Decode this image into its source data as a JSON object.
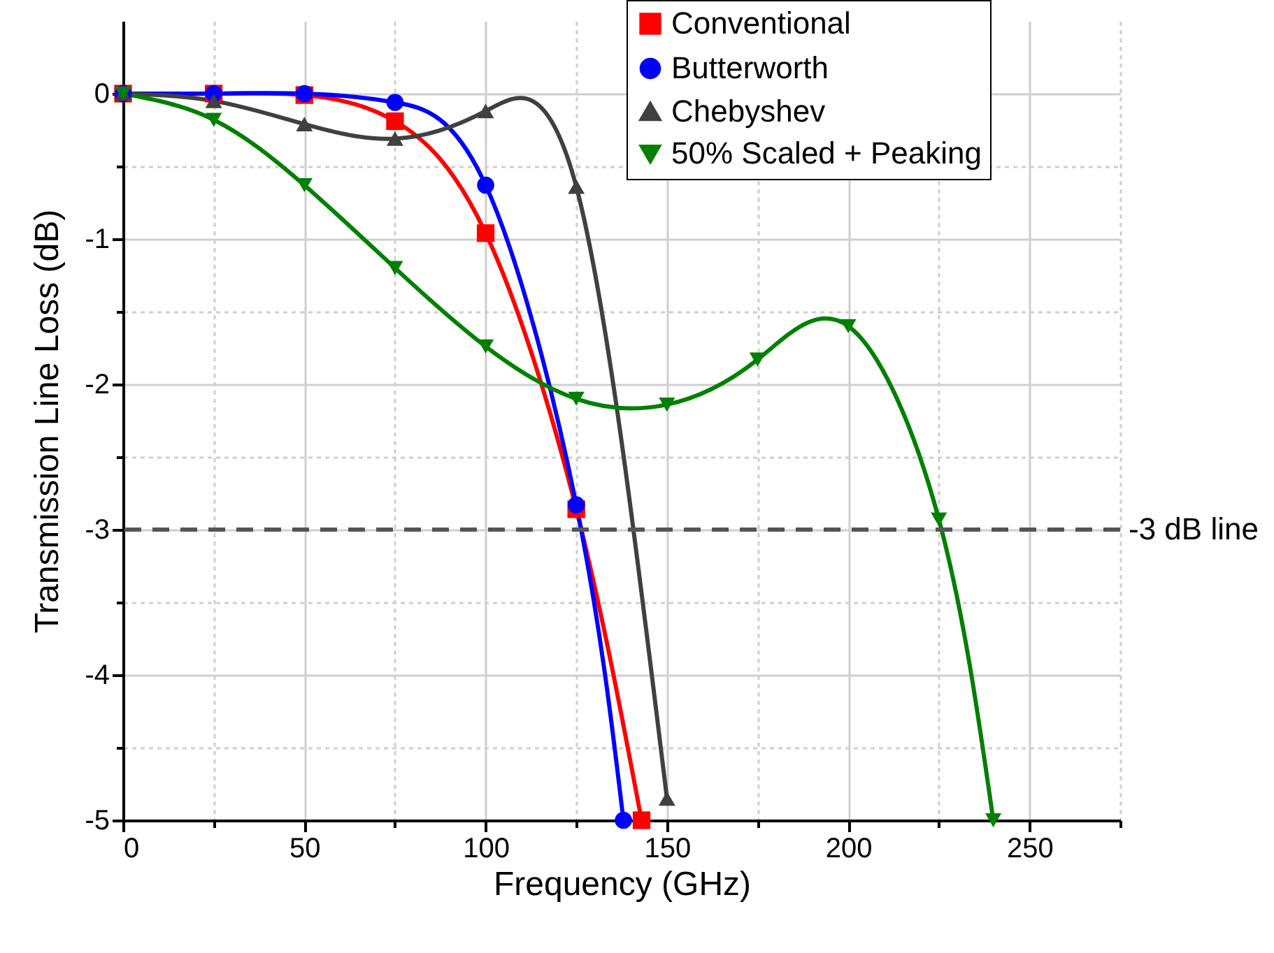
{
  "chart_data": {
    "type": "line",
    "xlabel": "Frequency (GHz)",
    "ylabel": "Transmission Line Loss (dB)",
    "xlim": [
      0,
      275
    ],
    "ylim": [
      -5,
      0.5
    ],
    "xticks": [
      0,
      {
        "value": 25,
        "label": null
      },
      50,
      {
        "value": 75,
        "label": null
      },
      100,
      {
        "value": 125,
        "label": null
      },
      150,
      {
        "value": 175,
        "label": null
      },
      200,
      {
        "value": 225,
        "label": null
      },
      250,
      {
        "value": 275,
        "label": null
      }
    ],
    "yticks": [
      -5,
      {
        "value": -4.5,
        "label": null
      },
      -4,
      {
        "value": -3.5,
        "label": null
      },
      -3,
      {
        "value": -2.5,
        "label": null
      },
      -2,
      {
        "value": -1.5,
        "label": null
      },
      -1,
      {
        "value": -0.5,
        "label": null
      },
      0
    ],
    "grid": true,
    "legend": "top right",
    "line_style": "solid",
    "series": [
      {
        "name": "Conventional",
        "color": "#ff0000",
        "marker": "square",
        "x": [
          0,
          25,
          50,
          75,
          100,
          125,
          143
        ],
        "values": [
          0,
          0,
          -0.01,
          -0.19,
          -0.96,
          -2.86,
          -5
        ]
      },
      {
        "name": "Butterworth",
        "color": "#0000ff",
        "marker": "circle",
        "x": [
          0,
          25,
          50,
          75,
          100,
          125,
          138
        ],
        "values": [
          0,
          0,
          0,
          -0.06,
          -0.63,
          -2.83,
          -5
        ]
      },
      {
        "name": "Chebyshev",
        "color": "#404040",
        "marker": "triangle",
        "x": [
          0,
          25,
          50,
          75,
          100,
          125,
          150
        ],
        "values": [
          0,
          -0.05,
          -0.21,
          -0.31,
          -0.12,
          -0.64,
          -4.85
        ]
      },
      {
        "name": "50% Scaled + Peaking",
        "color": "#008000",
        "marker": "triangle-down",
        "x": [
          0,
          25,
          50,
          75,
          100,
          125,
          150,
          175,
          200,
          225,
          240
        ],
        "values": [
          0,
          -0.18,
          -0.63,
          -1.2,
          -1.74,
          -2.1,
          -2.14,
          -1.83,
          -1.6,
          -2.93,
          -5
        ]
      }
    ],
    "ref_lines": [
      {
        "axis": "y",
        "value": -3,
        "label": "-3 dB line",
        "color": "#555555",
        "line_style": "dashed"
      }
    ]
  }
}
